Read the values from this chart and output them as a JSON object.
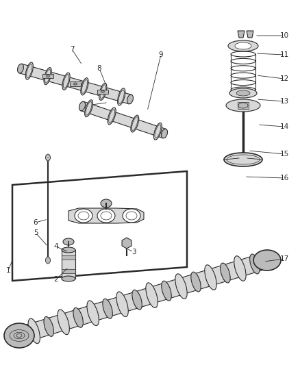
{
  "bg_color": "#ffffff",
  "line_color": "#2a2a2a",
  "gray_fill": "#d8d8d8",
  "gray_mid": "#bbbbbb",
  "gray_dark": "#999999",
  "fig_width": 4.38,
  "fig_height": 5.33,
  "label_fontsize": 7.5
}
